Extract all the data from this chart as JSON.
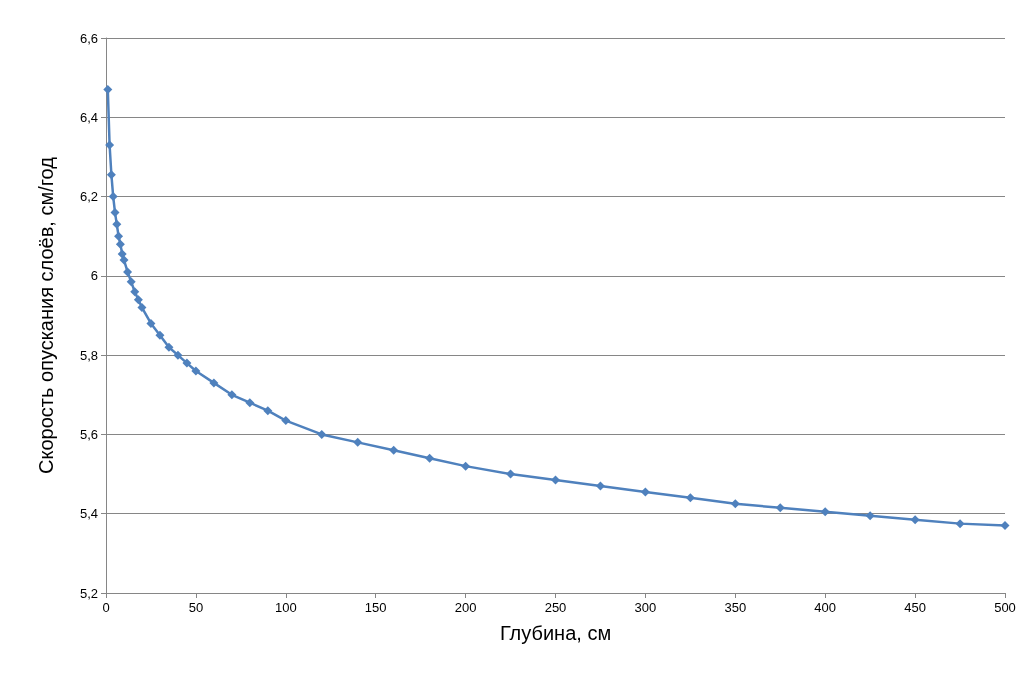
{
  "chart_data": {
    "type": "line",
    "xlabel": "Глубина, см",
    "ylabel": "Скорость опускания слоёв, см/год",
    "x": [
      1,
      2,
      3,
      4,
      5,
      6,
      7,
      8,
      9,
      10,
      12,
      14,
      16,
      18,
      20,
      25,
      30,
      35,
      40,
      45,
      50,
      60,
      70,
      80,
      90,
      100,
      120,
      140,
      160,
      180,
      200,
      225,
      250,
      275,
      300,
      325,
      350,
      375,
      400,
      425,
      450,
      475,
      500
    ],
    "series": [
      {
        "color": "#4f81bd",
        "values": [
          6.47,
          6.33,
          6.255,
          6.2,
          6.16,
          6.13,
          6.1,
          6.08,
          6.055,
          6.04,
          6.01,
          5.985,
          5.96,
          5.94,
          5.92,
          5.88,
          5.85,
          5.82,
          5.8,
          5.78,
          5.76,
          5.73,
          5.7,
          5.68,
          5.66,
          5.635,
          5.6,
          5.58,
          5.56,
          5.54,
          5.52,
          5.5,
          5.485,
          5.47,
          5.455,
          5.44,
          5.425,
          5.415,
          5.405,
          5.395,
          5.385,
          5.375,
          5.37
        ]
      }
    ],
    "xlim": [
      0,
      500
    ],
    "xticks": [
      0,
      50,
      100,
      150,
      200,
      250,
      300,
      350,
      400,
      450,
      500
    ],
    "ylim": [
      5.2,
      6.6
    ],
    "yticks": [
      {
        "value": 5.2,
        "label": "5,2"
      },
      {
        "value": 5.4,
        "label": "5,4"
      },
      {
        "value": 5.6,
        "label": "5,6"
      },
      {
        "value": 5.8,
        "label": "5,8"
      },
      {
        "value": 6,
        "label": "6"
      },
      {
        "value": 6.2,
        "label": "6,2"
      },
      {
        "value": 6.4,
        "label": "6,4"
      },
      {
        "value": 6.6,
        "label": "6,6"
      }
    ],
    "grid": "y",
    "marker": "diamond",
    "line_style": "solid"
  }
}
